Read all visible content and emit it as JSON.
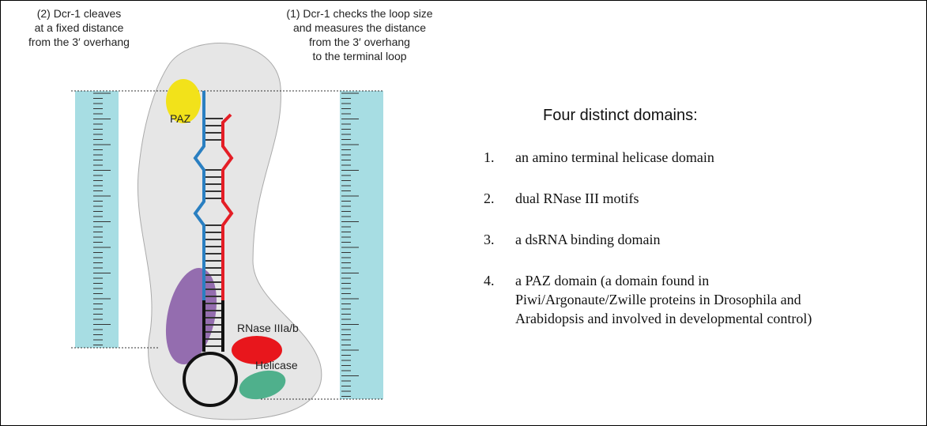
{
  "annotations": {
    "left": [
      "(2) Dcr-1 cleaves",
      "at a fixed distance",
      "from the 3′ overhang"
    ],
    "right": [
      "(1) Dcr-1 checks the loop size",
      "and measures the distance",
      "from the 3′ overhang",
      "to the terminal loop"
    ]
  },
  "labels": {
    "paz": "PAZ",
    "rnase": "RNase IIIa/b",
    "helicase": "Helicase"
  },
  "heading": "Four distinct domains:",
  "items": [
    {
      "number": "1.",
      "lines": [
        "an amino terminal helicase domain"
      ]
    },
    {
      "number": "2.",
      "lines": [
        "dual RNase III motifs"
      ]
    },
    {
      "number": "3.",
      "lines": [
        "a dsRNA binding domain"
      ]
    },
    {
      "number": "4.",
      "lines": [
        "a PAZ domain (a domain  found in",
        "Piwi/Argonaute/Zwille proteins in Drosophila and",
        "Arabidopsis and involved in developmental control)"
      ]
    }
  ]
}
